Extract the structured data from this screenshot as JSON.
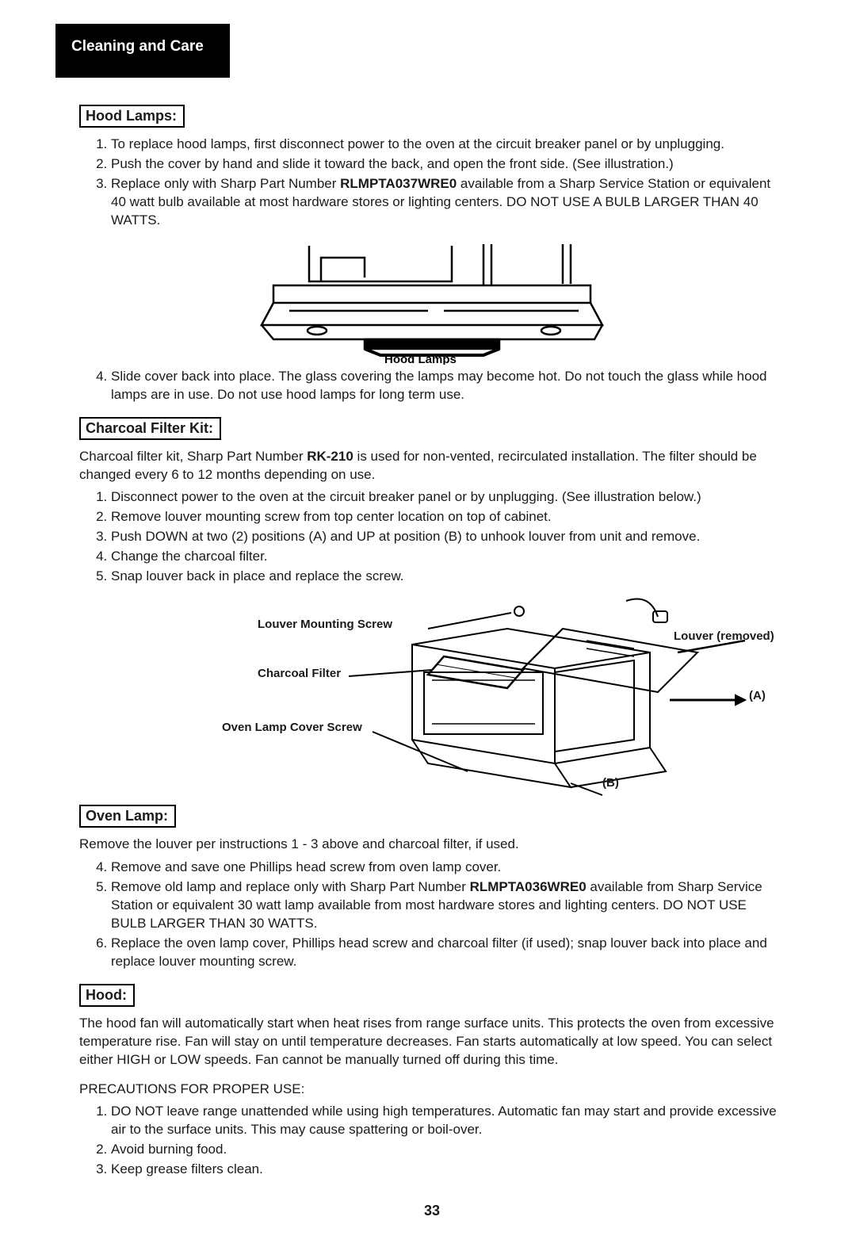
{
  "header": {
    "title": "Cleaning and Care"
  },
  "pageNumber": "33",
  "hoodLamps": {
    "title": "Hood Lamps:",
    "items": [
      "To replace hood lamps, first disconnect power to the oven at the circuit breaker panel or by unplugging.",
      "Push the cover by hand and slide it toward the back, and open the front side. (See illustration.)",
      "Replace only with Sharp Part Number <b>RLMPTA037WRE0</b> available from a Sharp Service Station or equivalent 40 watt bulb available at most hardware stores or lighting centers. DO NOT USE A BULB LARGER THAN 40 WATTS.",
      "Slide cover back into place. The glass covering the lamps may become hot. Do not touch the glass while hood lamps are in use. Do not use hood lamps for long term use."
    ],
    "caption": "Hood Lamps"
  },
  "charcoal": {
    "title": "Charcoal Filter Kit:",
    "intro": "Charcoal filter kit, Sharp Part Number <b>RK-210</b> is used for non-vented, recirculated installation. The filter should be changed every 6 to 12 months depending on use.",
    "items": [
      "Disconnect power to the oven at the circuit breaker panel or by unplugging. (See illustration below.)",
      "Remove louver mounting screw from top center location on top of cabinet.",
      "Push DOWN at two (2) positions (A) and UP at position (B) to unhook louver from unit and remove.",
      "Change the charcoal filter.",
      "Snap louver back in place and replace the screw."
    ],
    "labels": {
      "louverScrew": "Louver Mounting Screw",
      "louverRemoved": "Louver (removed)",
      "charcoalFilter": "Charcoal Filter",
      "ovenLampCover": "Oven Lamp Cover Screw",
      "A": "(A)",
      "B": "(B)"
    }
  },
  "ovenLamp": {
    "title": "Oven Lamp:",
    "intro": "Remove the louver per instructions 1 - 3 above and charcoal filter, if used.",
    "items": [
      "Remove and save one Phillips head screw from oven lamp cover.",
      "Remove old lamp and replace only with Sharp Part Number <b>RLMPTA036WRE0</b> available from Sharp Service Station or equivalent 30 watt lamp available from most hardware stores and lighting centers. DO NOT USE BULB LARGER THAN 30 WATTS.",
      "Replace the oven lamp cover, Phillips head screw and charcoal filter (if used); snap louver back into place and replace louver mounting screw."
    ]
  },
  "hood": {
    "title": "Hood:",
    "para": "The hood fan will automatically start when heat rises from range surface units. This protects the oven from excessive temperature rise. Fan will stay on until temperature decreases. Fan starts automatically at low speed. You can select either HIGH or LOW speeds. Fan cannot be manually turned off during this time.",
    "precautionsTitle": "PRECAUTIONS FOR PROPER USE:",
    "items": [
      "DO NOT leave range unattended while using high temperatures. Automatic fan may start and provide excessive air to the surface units. This may cause spattering or boil-over.",
      "Avoid burning food.",
      "Keep grease filters clean."
    ]
  },
  "colors": {
    "text": "#1a1a1a",
    "bg": "#ffffff",
    "band": "#000000"
  }
}
